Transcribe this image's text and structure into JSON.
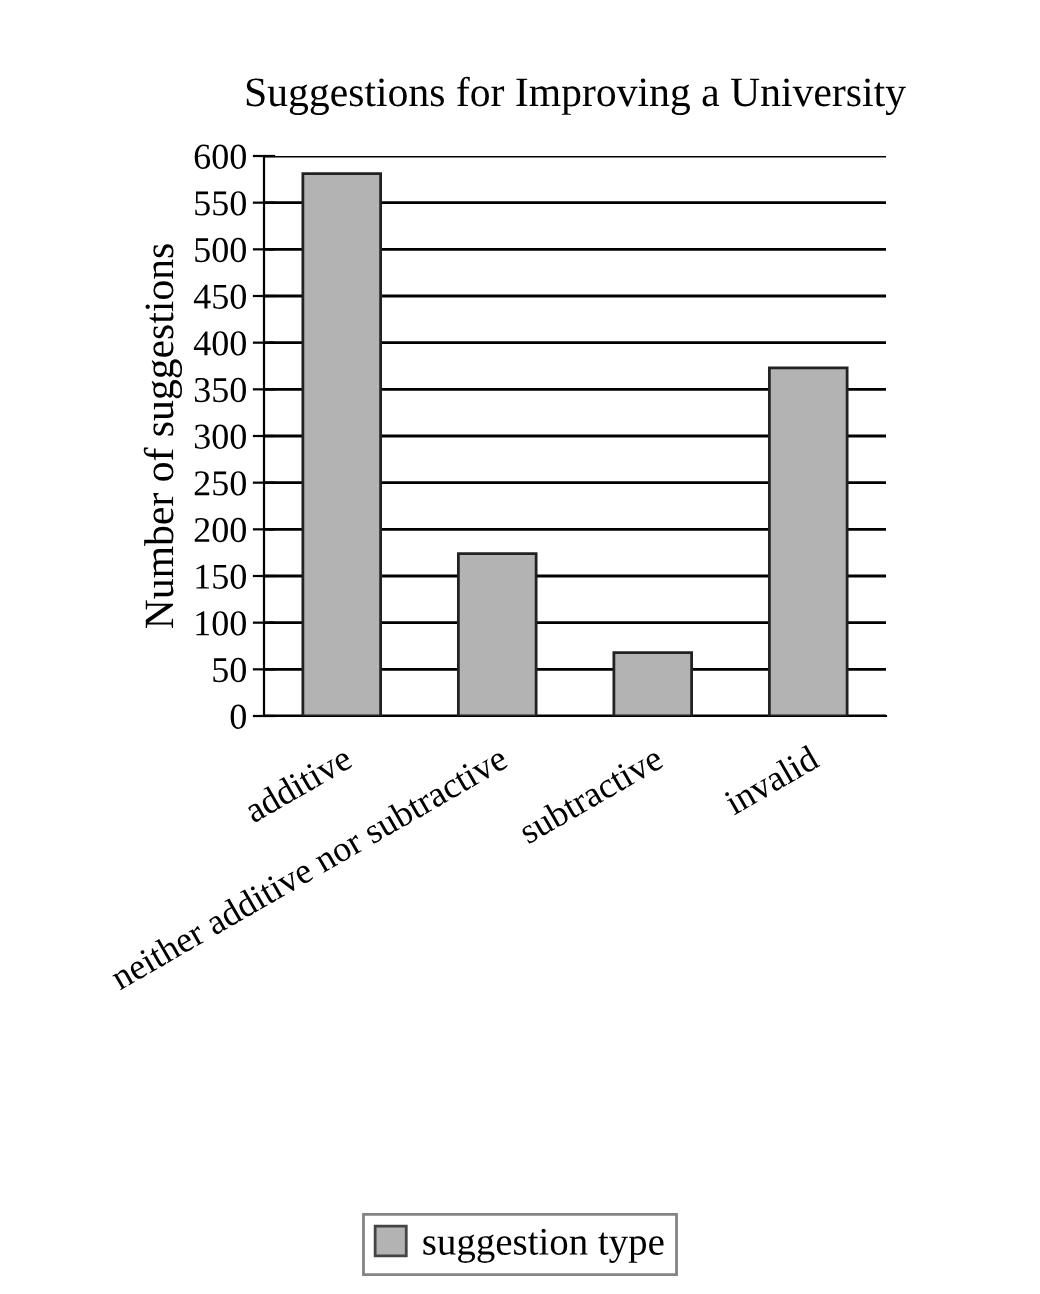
{
  "chart_data": {
    "type": "bar",
    "title": "Suggestions for Improving a University",
    "ylabel": "Number of suggestions",
    "categories": [
      "additive",
      "neither additive nor subtractive",
      "subtractive",
      "invalid"
    ],
    "series": [
      {
        "name": "suggestion type",
        "color": "#b3b3b3",
        "values": [
          581,
          174,
          68,
          373
        ]
      }
    ],
    "ylim": [
      0,
      600
    ],
    "yticks": [
      0,
      50,
      100,
      150,
      200,
      250,
      300,
      350,
      400,
      450,
      500,
      550,
      600
    ],
    "grid": "y",
    "legend": "bottom"
  }
}
